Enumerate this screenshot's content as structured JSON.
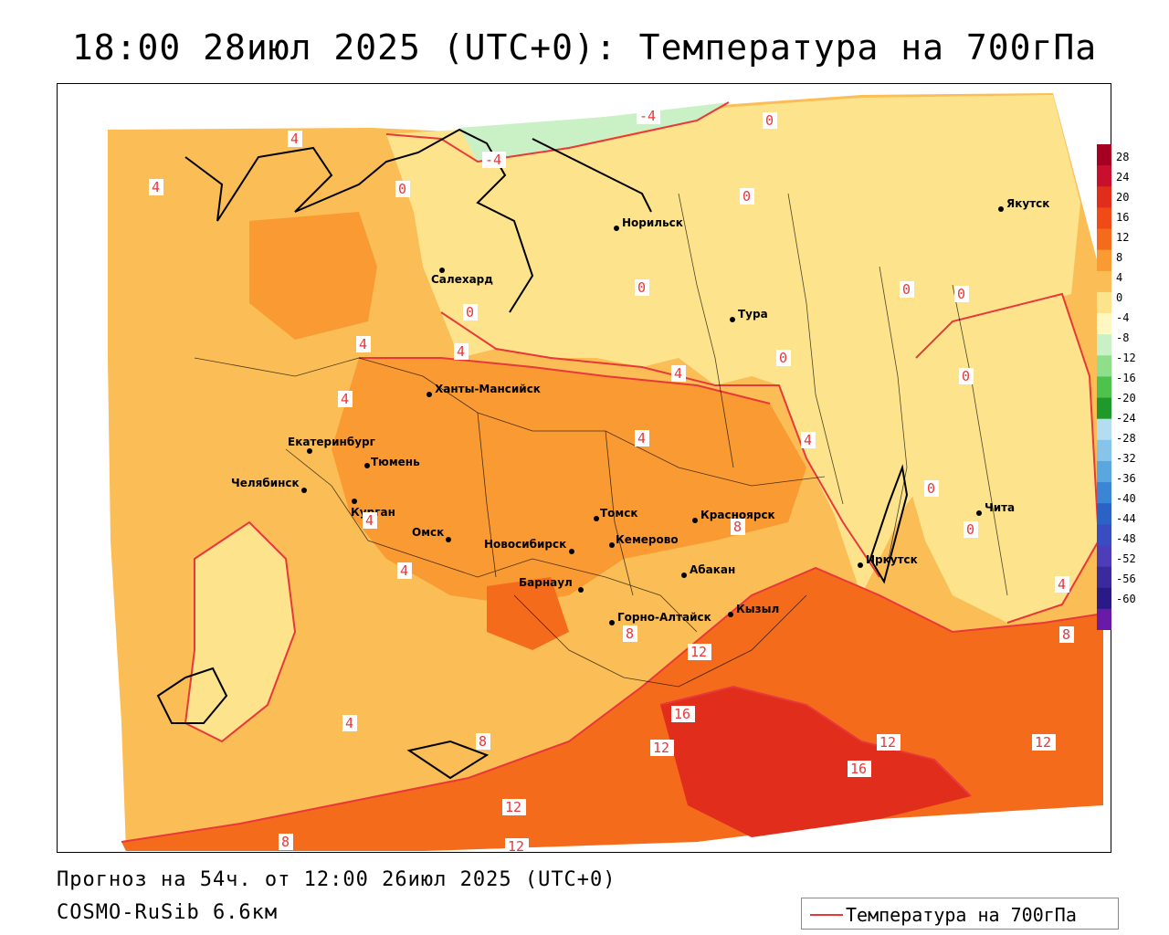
{
  "title": "18:00 28июл 2025 (UTC+0): Температура на 700гПа",
  "footer": {
    "forecast": "Прогноз на 54ч. от 12:00 26июл 2025 (UTC+0)",
    "model": "COSMO-RuSib 6.6км"
  },
  "legend": {
    "label": "Температура на 700гПа",
    "line_color": "#e8383a"
  },
  "colorbar": {
    "labels": [
      "28",
      "24",
      "20",
      "16",
      "12",
      "8",
      "4",
      "0",
      "-4",
      "-8",
      "-12",
      "-16",
      "-20",
      "-24",
      "-28",
      "-32",
      "-36",
      "-40",
      "-44",
      "-48",
      "-52",
      "-56",
      "-60"
    ],
    "colors": [
      "#a50020",
      "#c8102e",
      "#e02d1c",
      "#f04a17",
      "#f56b1c",
      "#f99a33",
      "#fbbd55",
      "#fde48c",
      "#fff6c2",
      "#c9f1c5",
      "#8fdf8a",
      "#4fc24d",
      "#1f9a2a",
      "#b4ddf2",
      "#86c4ea",
      "#5aa7e0",
      "#3a85d4",
      "#2a62c6",
      "#3a4cc2",
      "#4d3db8",
      "#3a2a9e",
      "#2a1a88",
      "#6a1aa8"
    ]
  },
  "cities": [
    {
      "name": "Якутск"
    },
    {
      "name": "Норильск"
    },
    {
      "name": "Салехард"
    },
    {
      "name": "Тура"
    },
    {
      "name": "Ханты-Мансийск"
    },
    {
      "name": "Екатеринбург"
    },
    {
      "name": "Тюмень"
    },
    {
      "name": "Челябинск"
    },
    {
      "name": "Курган"
    },
    {
      "name": "Омск"
    },
    {
      "name": "Новосибирск"
    },
    {
      "name": "Томск"
    },
    {
      "name": "Кемерово"
    },
    {
      "name": "Красноярск"
    },
    {
      "name": "Барнаул"
    },
    {
      "name": "Абакан"
    },
    {
      "name": "Горно-Алтайск"
    },
    {
      "name": "Кызыл"
    },
    {
      "name": "Иркутск"
    },
    {
      "name": "Чита"
    }
  ],
  "isotherm_labels": [
    "-4",
    "-4",
    "0",
    "0",
    "0",
    "0",
    "0",
    "0",
    "0",
    "0",
    "0",
    "0",
    "0",
    "4",
    "4",
    "4",
    "4",
    "4",
    "4",
    "4",
    "4",
    "4",
    "4",
    "4",
    "4",
    "8",
    "8",
    "8",
    "8",
    "8",
    "12",
    "12",
    "12",
    "12",
    "12",
    "12",
    "16",
    "16"
  ]
}
